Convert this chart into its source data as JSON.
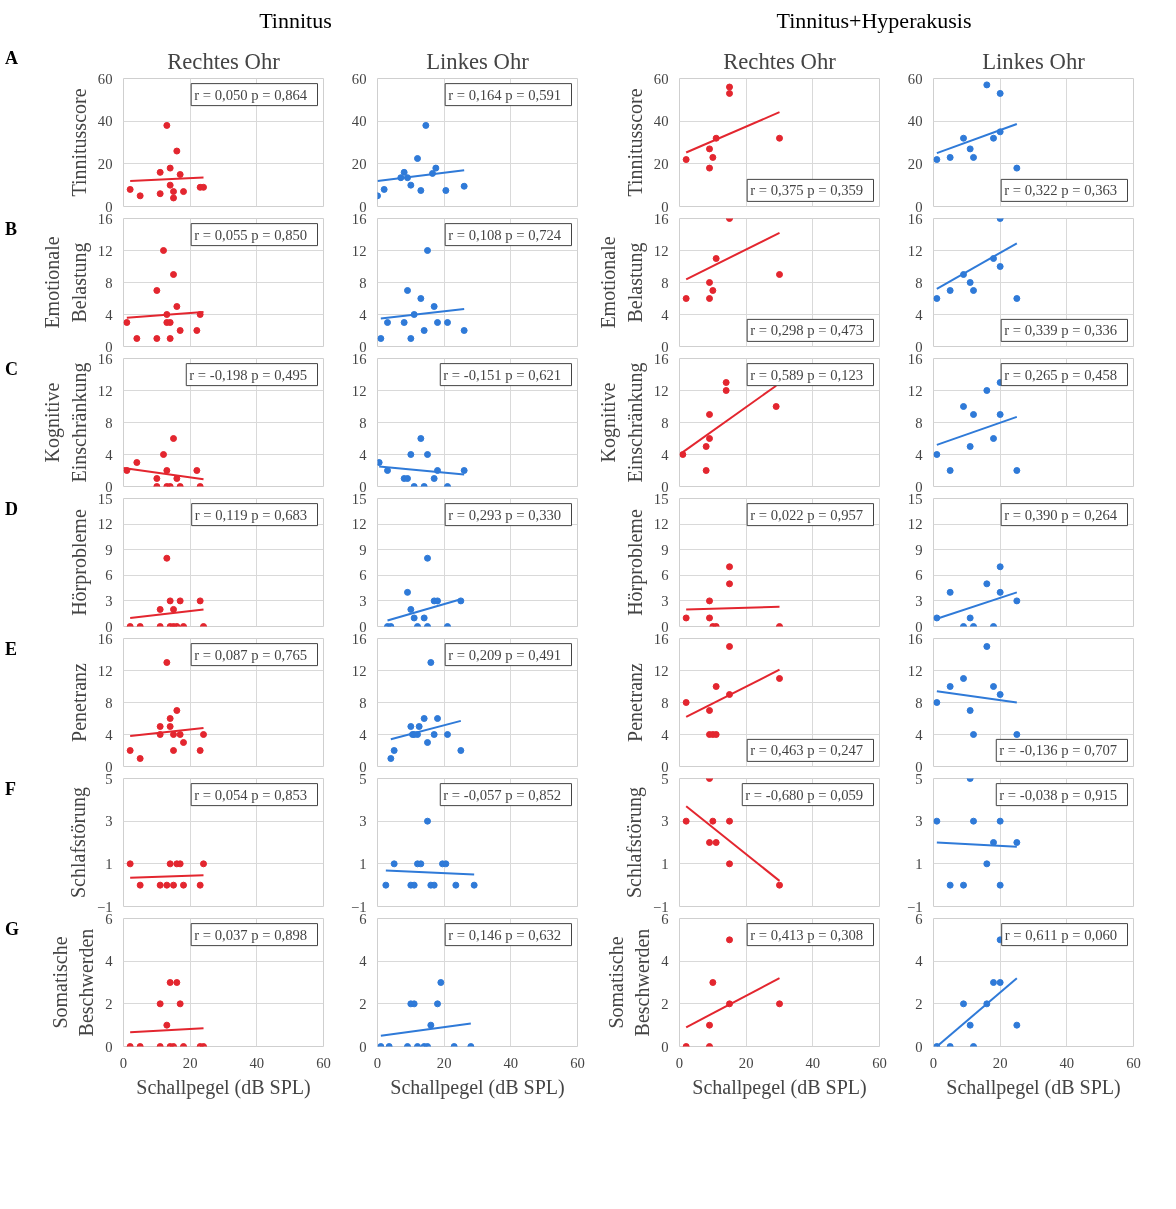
{
  "chart_data": [
    {
      "type": "scatter",
      "title": "Rechtes Ohr",
      "ylabel": "Tinnitusscore",
      "annotations": [
        "r = 0,050   p = 0,864",
        "A",
        "Tinnitus"
      ],
      "xlim": [
        0,
        60
      ],
      "xticks": [
        0,
        20,
        40,
        60
      ],
      "ylim": [
        0,
        60
      ],
      "yticks": [
        0,
        20,
        40,
        60
      ],
      "grid": true,
      "tick_labels": "y",
      "series": [
        {
          "marker": "circle",
          "color": "#e3262f",
          "x": [
            2,
            5,
            11,
            11,
            13,
            14,
            14,
            15,
            15,
            16,
            17,
            18,
            23,
            24
          ],
          "values": [
            8,
            5,
            6,
            16,
            38,
            18,
            10,
            4,
            7,
            26,
            15,
            7,
            9,
            9
          ]
        },
        {
          "type": "line",
          "color": "#e3262f",
          "x": [
            2,
            24
          ],
          "values": [
            11.9,
            13.6
          ]
        }
      ]
    },
    {
      "type": "scatter",
      "title": "Linkes Ohr",
      "annotations": [
        "r = 0,164   p = 0,591"
      ],
      "xlim": [
        0,
        60
      ],
      "xticks": [
        0,
        20,
        40,
        60
      ],
      "ylim": [
        0,
        60
      ],
      "yticks": [
        0,
        20,
        40,
        60
      ],
      "grid": true,
      "tick_labels": "y",
      "series": [
        {
          "marker": "circle",
          "color": "#2f7ad8",
          "x": [
            0,
            2,
            7,
            8,
            9,
            10,
            12,
            13,
            14.5,
            16.5,
            17.5,
            20.5,
            26
          ],
          "values": [
            5,
            8,
            13.5,
            16,
            13.5,
            10,
            22.5,
            7.5,
            38,
            15.5,
            18,
            7.5,
            9.5
          ]
        },
        {
          "type": "line",
          "color": "#2f7ad8",
          "x": [
            0,
            26
          ],
          "values": [
            11.9,
            17
          ]
        }
      ]
    },
    {
      "type": "scatter",
      "title": "Rechtes Ohr",
      "ylabel": "Tinnitusscore",
      "annotations": [
        "r = 0,375   p = 0,359",
        "Tinnitus+Hyperakusis"
      ],
      "xlim": [
        0,
        60
      ],
      "xticks": [
        0,
        20,
        40,
        60
      ],
      "ylim": [
        0,
        60
      ],
      "yticks": [
        0,
        20,
        40,
        60
      ],
      "grid": true,
      "tick_labels": "y",
      "series": [
        {
          "marker": "circle",
          "color": "#e3262f",
          "x": [
            2,
            9,
            9,
            10,
            11,
            15,
            15,
            30
          ],
          "values": [
            22,
            27,
            18,
            23,
            32,
            56,
            53,
            32
          ]
        },
        {
          "type": "line",
          "color": "#e3262f",
          "x": [
            2,
            30
          ],
          "values": [
            25.3,
            44.2
          ]
        }
      ]
    },
    {
      "type": "scatter",
      "title": "Linkes Ohr",
      "annotations": [
        "r = 0,322   p = 0,363"
      ],
      "xlim": [
        0,
        60
      ],
      "xticks": [
        0,
        20,
        40,
        60
      ],
      "ylim": [
        0,
        60
      ],
      "yticks": [
        0,
        20,
        40,
        60
      ],
      "grid": true,
      "tick_labels": "y",
      "series": [
        {
          "marker": "circle",
          "color": "#2f7ad8",
          "x": [
            1,
            5,
            9,
            11,
            12,
            16,
            18,
            20,
            20,
            25
          ],
          "values": [
            22,
            23,
            32,
            27,
            23,
            57,
            32,
            53,
            35,
            18
          ]
        },
        {
          "type": "line",
          "color": "#2f7ad8",
          "x": [
            1,
            25
          ],
          "values": [
            25,
            38.7
          ]
        }
      ]
    },
    {
      "type": "scatter",
      "ylabel": "Emotionale Belastung",
      "annotations": [
        "r = 0,055   p = 0,850",
        "B"
      ],
      "xlim": [
        0,
        60
      ],
      "xticks": [
        0,
        20,
        40,
        60
      ],
      "ylim": [
        0,
        16
      ],
      "yticks": [
        0,
        4,
        8,
        12,
        16
      ],
      "grid": true,
      "tick_labels": "y",
      "series": [
        {
          "marker": "circle",
          "color": "#e3262f",
          "x": [
            1,
            4,
            10,
            10,
            12,
            13,
            13,
            14,
            14,
            15,
            16,
            17,
            22,
            23
          ],
          "values": [
            3,
            1,
            7,
            1,
            12,
            4,
            3,
            3,
            1,
            9,
            5,
            2,
            2,
            4
          ]
        },
        {
          "type": "line",
          "color": "#e3262f",
          "x": [
            1,
            24
          ],
          "values": [
            3.6,
            4.3
          ]
        }
      ]
    },
    {
      "type": "scatter",
      "annotations": [
        "r = 0,108   p = 0,724"
      ],
      "xlim": [
        0,
        60
      ],
      "xticks": [
        0,
        20,
        40,
        60
      ],
      "ylim": [
        0,
        16
      ],
      "yticks": [
        0,
        4,
        8,
        12,
        16
      ],
      "grid": true,
      "tick_labels": "y",
      "series": [
        {
          "marker": "circle",
          "color": "#2f7ad8",
          "x": [
            1,
            3,
            8,
            9,
            10,
            11,
            13,
            14,
            15,
            17,
            18,
            21,
            26
          ],
          "values": [
            1,
            3,
            3,
            7,
            1,
            4,
            6,
            2,
            12,
            5,
            3,
            3,
            2
          ]
        },
        {
          "type": "line",
          "color": "#2f7ad8",
          "x": [
            1,
            26
          ],
          "values": [
            3.5,
            4.7
          ]
        }
      ]
    },
    {
      "type": "scatter",
      "ylabel": "Emotionale Belastung",
      "annotations": [
        "r = 0,298   p = 0,473"
      ],
      "xlim": [
        0,
        60
      ],
      "xticks": [
        0,
        20,
        40,
        60
      ],
      "ylim": [
        0,
        16
      ],
      "yticks": [
        0,
        4,
        8,
        12,
        16
      ],
      "grid": true,
      "tick_labels": "y",
      "series": [
        {
          "marker": "circle",
          "color": "#e3262f",
          "x": [
            2,
            9,
            9,
            10,
            11,
            15,
            30
          ],
          "values": [
            6,
            6,
            8,
            7,
            11,
            16,
            9
          ]
        },
        {
          "type": "line",
          "color": "#e3262f",
          "x": [
            2,
            30
          ],
          "values": [
            8.4,
            14.2
          ]
        }
      ]
    },
    {
      "type": "scatter",
      "annotations": [
        "r = 0,339   p = 0,336"
      ],
      "xlim": [
        0,
        60
      ],
      "xticks": [
        0,
        20,
        40,
        60
      ],
      "ylim": [
        0,
        16
      ],
      "yticks": [
        0,
        4,
        8,
        12,
        16
      ],
      "grid": true,
      "tick_labels": "y",
      "series": [
        {
          "marker": "circle",
          "color": "#2f7ad8",
          "x": [
            1,
            5,
            9,
            11,
            12,
            18,
            20,
            20,
            25
          ],
          "values": [
            6,
            7,
            9,
            8,
            7,
            11,
            16,
            10,
            6
          ]
        },
        {
          "type": "line",
          "color": "#2f7ad8",
          "x": [
            1,
            25
          ],
          "values": [
            7.2,
            12.9
          ]
        }
      ]
    },
    {
      "type": "scatter",
      "ylabel": "Kognitive Einschränkung",
      "annotations": [
        "r = -0,198   p = 0,495",
        "C"
      ],
      "xlim": [
        0,
        60
      ],
      "xticks": [
        0,
        20,
        40,
        60
      ],
      "ylim": [
        0,
        16
      ],
      "yticks": [
        0,
        4,
        8,
        12,
        16
      ],
      "grid": true,
      "tick_labels": "y",
      "series": [
        {
          "marker": "circle",
          "color": "#e3262f",
          "x": [
            1,
            4,
            10,
            10,
            12,
            13,
            13,
            14,
            15,
            16,
            17,
            22,
            23
          ],
          "values": [
            2,
            3,
            1,
            0,
            4,
            2,
            0,
            0,
            6,
            1,
            0,
            2,
            0
          ]
        },
        {
          "type": "line",
          "color": "#e3262f",
          "x": [
            0,
            24
          ],
          "values": [
            2.3,
            0.9
          ]
        }
      ]
    },
    {
      "type": "scatter",
      "annotations": [
        "r = -0,151   p = 0,621"
      ],
      "xlim": [
        0,
        60
      ],
      "xticks": [
        0,
        20,
        40,
        60
      ],
      "ylim": [
        0,
        16
      ],
      "yticks": [
        0,
        4,
        8,
        12,
        16
      ],
      "grid": true,
      "tick_labels": "y",
      "series": [
        {
          "marker": "circle",
          "color": "#2f7ad8",
          "x": [
            0.5,
            3,
            8,
            9,
            10,
            11,
            13,
            14,
            15,
            17,
            18,
            21,
            26
          ],
          "values": [
            3,
            2,
            1,
            1,
            4,
            0,
            6,
            0,
            4,
            1,
            2,
            0,
            2
          ]
        },
        {
          "type": "line",
          "color": "#2f7ad8",
          "x": [
            0.5,
            26
          ],
          "values": [
            2.5,
            1.5
          ]
        }
      ]
    },
    {
      "type": "scatter",
      "ylabel": "Kognitive Einschränkung",
      "annotations": [
        "r = 0,589   p = 0,123"
      ],
      "xlim": [
        0,
        60
      ],
      "xticks": [
        0,
        20,
        40,
        60
      ],
      "ylim": [
        0,
        16
      ],
      "yticks": [
        0,
        4,
        8,
        12,
        16
      ],
      "grid": true,
      "tick_labels": "y",
      "series": [
        {
          "marker": "circle",
          "color": "#e3262f",
          "x": [
            1,
            8,
            8,
            9,
            9,
            14,
            14,
            29
          ],
          "values": [
            4,
            2,
            5,
            6,
            9,
            12,
            13,
            10
          ]
        },
        {
          "type": "line",
          "color": "#e3262f",
          "x": [
            1,
            29
          ],
          "values": [
            4.3,
            12.6
          ]
        }
      ]
    },
    {
      "type": "scatter",
      "annotations": [
        "r = 0,265   p = 0,458"
      ],
      "xlim": [
        0,
        60
      ],
      "xticks": [
        0,
        20,
        40,
        60
      ],
      "ylim": [
        0,
        16
      ],
      "yticks": [
        0,
        4,
        8,
        12,
        16
      ],
      "grid": true,
      "tick_labels": "y",
      "series": [
        {
          "marker": "circle",
          "color": "#2f7ad8",
          "x": [
            1,
            5,
            9,
            11,
            12,
            16,
            18,
            20,
            20,
            25
          ],
          "values": [
            4,
            2,
            10,
            5,
            9,
            12,
            6,
            13,
            9,
            2
          ]
        },
        {
          "type": "line",
          "color": "#2f7ad8",
          "x": [
            1,
            25
          ],
          "values": [
            5.2,
            8.7
          ]
        }
      ]
    },
    {
      "type": "scatter",
      "ylabel": "Hörprobleme",
      "annotations": [
        "r = 0,119   p = 0,683",
        "D"
      ],
      "xlim": [
        0,
        60
      ],
      "xticks": [
        0,
        20,
        40,
        60
      ],
      "ylim": [
        0,
        15
      ],
      "yticks": [
        0,
        3,
        6,
        9,
        12,
        15
      ],
      "grid": true,
      "tick_labels": "y",
      "series": [
        {
          "marker": "circle",
          "color": "#e3262f",
          "x": [
            2,
            5,
            11,
            11,
            13,
            14,
            14,
            15,
            15,
            16,
            17,
            18,
            23,
            24
          ],
          "values": [
            0,
            0,
            0,
            2,
            8,
            3,
            0,
            2,
            0,
            0,
            3,
            0,
            3,
            0
          ]
        },
        {
          "type": "line",
          "color": "#e3262f",
          "x": [
            2,
            24
          ],
          "values": [
            1,
            2
          ]
        }
      ]
    },
    {
      "type": "scatter",
      "annotations": [
        "r = 0,293   p = 0,330"
      ],
      "xlim": [
        0,
        60
      ],
      "xticks": [
        0,
        20,
        40,
        60
      ],
      "ylim": [
        0,
        15
      ],
      "yticks": [
        0,
        3,
        6,
        9,
        12,
        15
      ],
      "grid": true,
      "tick_labels": "y",
      "series": [
        {
          "marker": "circle",
          "color": "#2f7ad8",
          "x": [
            3,
            4,
            9,
            10,
            11,
            12,
            14,
            15,
            15,
            17,
            18,
            21,
            25
          ],
          "values": [
            0,
            0,
            4,
            2,
            1,
            0,
            1,
            0,
            8,
            3,
            3,
            0,
            3
          ]
        },
        {
          "type": "line",
          "color": "#2f7ad8",
          "x": [
            3,
            25
          ],
          "values": [
            0.7,
            3.2
          ]
        }
      ]
    },
    {
      "type": "scatter",
      "ylabel": "Hörprobleme",
      "annotations": [
        "r = 0,022   p = 0,957"
      ],
      "xlim": [
        0,
        60
      ],
      "xticks": [
        0,
        20,
        40,
        60
      ],
      "ylim": [
        0,
        15
      ],
      "yticks": [
        0,
        3,
        6,
        9,
        12,
        15
      ],
      "grid": true,
      "tick_labels": "y",
      "series": [
        {
          "marker": "circle",
          "color": "#e3262f",
          "x": [
            2,
            9,
            9,
            10,
            11,
            15,
            15,
            30
          ],
          "values": [
            1,
            3,
            1,
            0,
            0,
            7,
            5,
            0
          ]
        },
        {
          "type": "line",
          "color": "#e3262f",
          "x": [
            2,
            30
          ],
          "values": [
            2.0,
            2.3
          ]
        }
      ]
    },
    {
      "type": "scatter",
      "annotations": [
        "r = 0,390   p = 0,264"
      ],
      "xlim": [
        0,
        60
      ],
      "xticks": [
        0,
        20,
        40,
        60
      ],
      "ylim": [
        0,
        15
      ],
      "yticks": [
        0,
        3,
        6,
        9,
        12,
        15
      ],
      "grid": true,
      "tick_labels": "y",
      "series": [
        {
          "marker": "circle",
          "color": "#2f7ad8",
          "x": [
            1,
            5,
            9,
            11,
            12,
            16,
            18,
            20,
            20,
            25
          ],
          "values": [
            1,
            4,
            0,
            1,
            0,
            5,
            0,
            7,
            4,
            3
          ]
        },
        {
          "type": "line",
          "color": "#2f7ad8",
          "x": [
            1,
            25
          ],
          "values": [
            0.9,
            4.0
          ]
        }
      ]
    },
    {
      "type": "scatter",
      "ylabel": "Penetranz",
      "annotations": [
        "r = 0,087   p = 0,765",
        "E"
      ],
      "xlim": [
        0,
        60
      ],
      "xticks": [
        0,
        20,
        40,
        60
      ],
      "ylim": [
        0,
        16
      ],
      "yticks": [
        0,
        4,
        8,
        12,
        16
      ],
      "grid": true,
      "tick_labels": "y",
      "series": [
        {
          "marker": "circle",
          "color": "#e3262f",
          "x": [
            2,
            5,
            11,
            11,
            13,
            14,
            14,
            15,
            15,
            16,
            17,
            18,
            23,
            24
          ],
          "values": [
            2,
            1,
            5,
            4,
            13,
            6,
            5,
            4,
            2,
            7,
            4,
            3,
            2,
            4
          ]
        },
        {
          "type": "line",
          "color": "#e3262f",
          "x": [
            2,
            24
          ],
          "values": [
            3.8,
            4.8
          ]
        }
      ]
    },
    {
      "type": "scatter",
      "annotations": [
        "r = 0,209   p = 0,491"
      ],
      "xlim": [
        0,
        60
      ],
      "xticks": [
        0,
        20,
        40,
        60
      ],
      "ylim": [
        0,
        16
      ],
      "yticks": [
        0,
        4,
        8,
        12,
        16
      ],
      "grid": true,
      "tick_labels": "y",
      "series": [
        {
          "marker": "circle",
          "color": "#2f7ad8",
          "x": [
            4,
            5,
            10,
            10.5,
            11,
            12,
            12.5,
            14,
            15,
            16,
            17,
            18,
            21,
            25
          ],
          "values": [
            1,
            2,
            5,
            4,
            4,
            4,
            5,
            6,
            3,
            13,
            4,
            6,
            4,
            2
          ]
        },
        {
          "type": "line",
          "color": "#2f7ad8",
          "x": [
            4,
            25
          ],
          "values": [
            3.4,
            5.7
          ]
        }
      ]
    },
    {
      "type": "scatter",
      "ylabel": "Penetranz",
      "annotations": [
        "r = 0,463   p = 0,247"
      ],
      "xlim": [
        0,
        60
      ],
      "xticks": [
        0,
        20,
        40,
        60
      ],
      "ylim": [
        0,
        16
      ],
      "yticks": [
        0,
        4,
        8,
        12,
        16
      ],
      "grid": true,
      "tick_labels": "y",
      "series": [
        {
          "marker": "circle",
          "color": "#e3262f",
          "x": [
            2,
            9,
            9,
            10,
            11,
            11,
            15,
            15,
            30
          ],
          "values": [
            8,
            7,
            4,
            4,
            4,
            10,
            15,
            9,
            11
          ]
        },
        {
          "type": "line",
          "color": "#e3262f",
          "x": [
            2,
            30
          ],
          "values": [
            6.2,
            12.1
          ]
        }
      ]
    },
    {
      "type": "scatter",
      "annotations": [
        "r = -0,136   p = 0,707"
      ],
      "xlim": [
        0,
        60
      ],
      "xticks": [
        0,
        20,
        40,
        60
      ],
      "ylim": [
        0,
        16
      ],
      "yticks": [
        0,
        4,
        8,
        12,
        16
      ],
      "grid": true,
      "tick_labels": "y",
      "series": [
        {
          "marker": "circle",
          "color": "#2f7ad8",
          "x": [
            1,
            5,
            9,
            11,
            12,
            16,
            18,
            20,
            25
          ],
          "values": [
            8,
            10,
            11,
            7,
            4,
            15,
            10,
            9,
            4
          ]
        },
        {
          "type": "line",
          "color": "#2f7ad8",
          "x": [
            1,
            25
          ],
          "values": [
            9.4,
            8.0
          ]
        }
      ]
    },
    {
      "type": "scatter",
      "ylabel": "Schlafstörung",
      "annotations": [
        "r = 0,054   p = 0,853",
        "F"
      ],
      "xlim": [
        0,
        60
      ],
      "xticks": [
        0,
        20,
        40,
        60
      ],
      "ylim": [
        -1,
        5
      ],
      "yticks": [
        -1,
        1,
        3,
        5
      ],
      "grid": true,
      "tick_labels": "y",
      "series": [
        {
          "marker": "circle",
          "color": "#e3262f",
          "x": [
            2,
            5,
            11,
            13,
            14,
            15,
            16,
            17,
            18,
            23,
            24
          ],
          "values": [
            1,
            0,
            0,
            0,
            1,
            0,
            1,
            1,
            0,
            0,
            1
          ]
        },
        {
          "type": "line",
          "color": "#e3262f",
          "x": [
            2,
            24
          ],
          "values": [
            0.35,
            0.46
          ]
        }
      ]
    },
    {
      "type": "scatter",
      "annotations": [
        "r = -0,057   p = 0,852"
      ],
      "xlim": [
        0,
        60
      ],
      "xticks": [
        0,
        20,
        40,
        60
      ],
      "ylim": [
        -1,
        5
      ],
      "yticks": [
        -1,
        1,
        3,
        5
      ],
      "grid": true,
      "tick_labels": "y",
      "series": [
        {
          "marker": "circle",
          "color": "#2f7ad8",
          "x": [
            2.5,
            5,
            10,
            11,
            12,
            13,
            15,
            16,
            17,
            19.5,
            20.5,
            23.5,
            29
          ],
          "values": [
            0,
            1,
            0,
            0,
            1,
            1,
            3,
            0,
            0,
            1,
            1,
            0,
            0
          ]
        },
        {
          "type": "line",
          "color": "#2f7ad8",
          "x": [
            2.5,
            29
          ],
          "values": [
            0.69,
            0.5
          ]
        }
      ]
    },
    {
      "type": "scatter",
      "ylabel": "Schlafstörung",
      "annotations": [
        "r = -0,680   p = 0,059"
      ],
      "xlim": [
        0,
        60
      ],
      "xticks": [
        0,
        20,
        40,
        60
      ],
      "ylim": [
        -1,
        5
      ],
      "yticks": [
        -1,
        1,
        3,
        5
      ],
      "grid": true,
      "tick_labels": "y",
      "series": [
        {
          "marker": "circle",
          "color": "#e3262f",
          "x": [
            2,
            9,
            9,
            10,
            11,
            15,
            15,
            30
          ],
          "values": [
            3,
            5,
            2,
            3,
            2,
            3,
            1,
            0
          ]
        },
        {
          "type": "line",
          "color": "#e3262f",
          "x": [
            2,
            30
          ],
          "values": [
            3.7,
            0.2
          ]
        }
      ]
    },
    {
      "type": "scatter",
      "annotations": [
        "r = -0,038   p = 0,915"
      ],
      "xlim": [
        0,
        60
      ],
      "xticks": [
        0,
        20,
        40,
        60
      ],
      "ylim": [
        -1,
        5
      ],
      "yticks": [
        -1,
        1,
        3,
        5
      ],
      "grid": true,
      "tick_labels": "y",
      "series": [
        {
          "marker": "circle",
          "color": "#2f7ad8",
          "x": [
            1,
            5,
            9,
            11,
            12,
            16,
            18,
            20,
            20,
            25
          ],
          "values": [
            3,
            0,
            0,
            5,
            3,
            1,
            2,
            3,
            0,
            2
          ]
        },
        {
          "type": "line",
          "color": "#2f7ad8",
          "x": [
            1,
            25
          ],
          "values": [
            2.0,
            1.8
          ]
        }
      ]
    },
    {
      "type": "scatter",
      "ylabel": "Somatische Beschwerden",
      "xlabel": "Schallpegel (dB SPL)",
      "annotations": [
        "r = 0,037   p = 0,898",
        "G"
      ],
      "xlim": [
        0,
        60
      ],
      "xticks": [
        0,
        20,
        40,
        60
      ],
      "ylim": [
        0,
        6
      ],
      "yticks": [
        0,
        2,
        4,
        6
      ],
      "grid": true,
      "series": [
        {
          "marker": "circle",
          "color": "#e3262f",
          "x": [
            2,
            5,
            11,
            11,
            13,
            14,
            14,
            15,
            16,
            17,
            18,
            23,
            24
          ],
          "values": [
            0,
            0,
            2,
            0,
            1,
            3,
            0,
            0,
            3,
            2,
            0,
            0,
            0
          ]
        },
        {
          "type": "line",
          "color": "#e3262f",
          "x": [
            2,
            24
          ],
          "values": [
            0.67,
            0.86
          ]
        }
      ]
    },
    {
      "type": "scatter",
      "xlabel": "Schallpegel (dB SPL)",
      "annotations": [
        "r = 0,146   p = 0,632"
      ],
      "xlim": [
        0,
        60
      ],
      "xticks": [
        0,
        20,
        40,
        60
      ],
      "ylim": [
        0,
        6
      ],
      "yticks": [
        0,
        2,
        4,
        6
      ],
      "grid": true,
      "series": [
        {
          "marker": "circle",
          "color": "#2f7ad8",
          "x": [
            1,
            3.5,
            9,
            10,
            11,
            12,
            14,
            15,
            16,
            18,
            19,
            23,
            28
          ],
          "values": [
            0,
            0,
            0,
            2,
            2,
            0,
            0,
            0,
            1,
            2,
            3,
            0,
            0
          ]
        },
        {
          "type": "line",
          "color": "#2f7ad8",
          "x": [
            1,
            28
          ],
          "values": [
            0.5,
            1.08
          ]
        }
      ]
    },
    {
      "type": "scatter",
      "ylabel": "Somatische Beschwerden",
      "xlabel": "Schallpegel (dB SPL)",
      "annotations": [
        "r = 0,413   p = 0,308"
      ],
      "xlim": [
        0,
        60
      ],
      "xticks": [
        0,
        20,
        40,
        60
      ],
      "ylim": [
        0,
        6
      ],
      "yticks": [
        0,
        2,
        4,
        6
      ],
      "grid": true,
      "series": [
        {
          "marker": "circle",
          "color": "#e3262f",
          "x": [
            2,
            9,
            9,
            10,
            15,
            15,
            30
          ],
          "values": [
            0,
            1,
            0,
            3,
            5,
            2,
            2
          ]
        },
        {
          "type": "line",
          "color": "#e3262f",
          "x": [
            2,
            30
          ],
          "values": [
            0.9,
            3.2
          ]
        }
      ]
    },
    {
      "type": "scatter",
      "xlabel": "Schallpegel (dB SPL)",
      "annotations": [
        "r = 0,611   p = 0,060"
      ],
      "xlim": [
        0,
        60
      ],
      "xticks": [
        0,
        20,
        40,
        60
      ],
      "ylim": [
        0,
        6
      ],
      "yticks": [
        0,
        2,
        4,
        6
      ],
      "grid": true,
      "series": [
        {
          "marker": "circle",
          "color": "#2f7ad8",
          "x": [
            1,
            5,
            9,
            11,
            12,
            16,
            18,
            20,
            20,
            25
          ],
          "values": [
            0,
            0,
            2,
            1,
            0,
            2,
            3,
            5,
            3,
            1
          ]
        },
        {
          "type": "line",
          "color": "#2f7ad8",
          "x": [
            1,
            25
          ],
          "values": [
            0,
            3.2
          ]
        }
      ]
    }
  ]
}
